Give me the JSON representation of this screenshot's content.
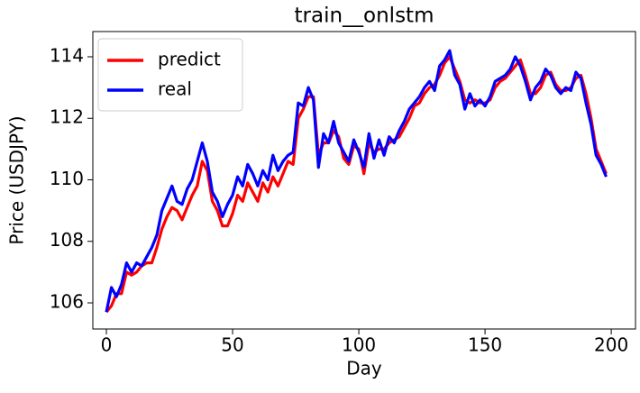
{
  "chart_data": {
    "type": "line",
    "title": "train__onlstm",
    "xlabel": "Day",
    "ylabel": "Price (USDJPY)",
    "x": [
      0,
      2,
      4,
      6,
      8,
      10,
      12,
      14,
      16,
      18,
      20,
      22,
      24,
      26,
      28,
      30,
      32,
      34,
      36,
      38,
      40,
      42,
      44,
      46,
      48,
      50,
      52,
      54,
      56,
      58,
      60,
      62,
      64,
      66,
      68,
      70,
      72,
      74,
      76,
      78,
      80,
      82,
      84,
      86,
      88,
      90,
      92,
      94,
      96,
      98,
      100,
      102,
      104,
      106,
      108,
      110,
      112,
      114,
      116,
      118,
      120,
      122,
      124,
      126,
      128,
      130,
      132,
      134,
      136,
      138,
      140,
      142,
      144,
      146,
      148,
      150,
      152,
      154,
      156,
      158,
      160,
      162,
      164,
      166,
      168,
      170,
      172,
      174,
      176,
      178,
      180,
      182,
      184,
      186,
      188,
      190,
      192,
      194,
      196,
      198
    ],
    "series": [
      {
        "name": "predict",
        "color": "#ff0000",
        "values": [
          105.7,
          105.9,
          106.3,
          106.3,
          107.0,
          106.9,
          107.0,
          107.2,
          107.3,
          107.3,
          107.8,
          108.4,
          108.8,
          109.1,
          109.0,
          108.7,
          109.1,
          109.5,
          109.8,
          110.6,
          110.3,
          109.3,
          109.0,
          108.5,
          108.5,
          108.9,
          109.5,
          109.3,
          109.9,
          109.6,
          109.3,
          109.9,
          109.6,
          110.1,
          109.8,
          110.2,
          110.6,
          110.5,
          112.0,
          112.3,
          112.7,
          112.7,
          110.8,
          111.2,
          111.2,
          111.6,
          111.4,
          110.7,
          110.5,
          111.1,
          111.0,
          110.2,
          111.2,
          110.9,
          111.0,
          111.0,
          111.2,
          111.3,
          111.4,
          111.7,
          112.0,
          112.4,
          112.5,
          112.8,
          113.0,
          113.1,
          113.4,
          113.8,
          114.0,
          113.6,
          113.2,
          112.6,
          112.5,
          112.6,
          112.5,
          112.5,
          112.6,
          113.0,
          113.2,
          113.3,
          113.5,
          113.7,
          113.9,
          113.4,
          112.8,
          112.8,
          113.0,
          113.4,
          113.5,
          113.1,
          112.9,
          112.9,
          113.0,
          113.3,
          113.4,
          112.8,
          112.0,
          111.0,
          110.6,
          110.2
        ]
      },
      {
        "name": "real",
        "color": "#0000ff",
        "values": [
          105.7,
          106.5,
          106.2,
          106.6,
          107.3,
          107.0,
          107.3,
          107.2,
          107.5,
          107.8,
          108.2,
          109.0,
          109.4,
          109.8,
          109.3,
          109.2,
          109.7,
          110.0,
          110.6,
          111.2,
          110.6,
          109.6,
          109.3,
          108.8,
          109.2,
          109.5,
          110.1,
          109.8,
          110.5,
          110.2,
          109.8,
          110.3,
          110.0,
          110.8,
          110.3,
          110.6,
          110.8,
          110.9,
          112.5,
          112.4,
          113.0,
          112.6,
          110.4,
          111.5,
          111.2,
          111.9,
          111.2,
          110.9,
          110.6,
          111.3,
          110.9,
          110.4,
          111.5,
          110.7,
          111.3,
          110.8,
          111.4,
          111.2,
          111.6,
          111.9,
          112.3,
          112.5,
          112.7,
          113.0,
          113.2,
          112.9,
          113.7,
          113.9,
          114.2,
          113.4,
          113.1,
          112.3,
          112.8,
          112.4,
          112.6,
          112.4,
          112.7,
          113.2,
          113.3,
          113.4,
          113.6,
          114.0,
          113.7,
          113.2,
          112.6,
          113.0,
          113.2,
          113.6,
          113.4,
          113.0,
          112.8,
          113.0,
          112.9,
          113.5,
          113.3,
          112.5,
          111.8,
          110.8,
          110.5,
          110.1
        ]
      }
    ],
    "xlim": [
      -5.36,
      209.6
    ],
    "ylim": [
      105.15,
      114.82
    ],
    "xticks": [
      0,
      50,
      100,
      150,
      200
    ],
    "yticks": [
      106,
      108,
      110,
      112,
      114
    ],
    "legend": "upper left",
    "grid": false
  }
}
